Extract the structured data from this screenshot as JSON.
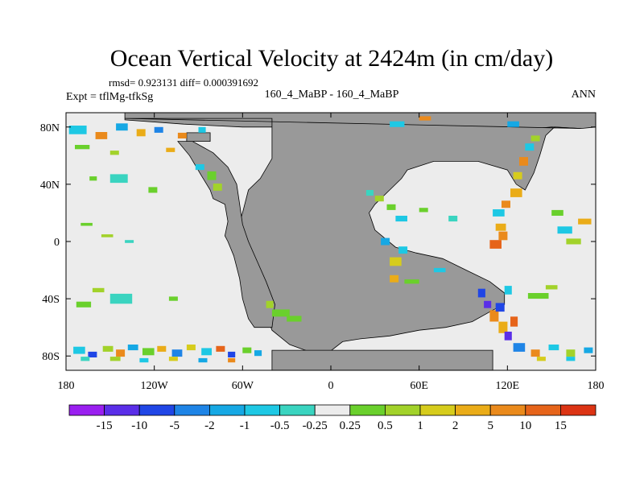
{
  "chart_data": {
    "type": "heatmap",
    "title": "Ocean Vertical Velocity at 2424m (in cm/day)",
    "stats_line": "rmsd= 0.923131 diff= 0.000391692",
    "expt_line": "Expt = tflMg-tfkSg",
    "center_label": "160_4_MaBP - 160_4_MaBP",
    "season": "ANN",
    "x_ticks": [
      "180",
      "120W",
      "60W",
      "0",
      "60E",
      "120E",
      "180"
    ],
    "x_tick_values": [
      -180,
      -120,
      -60,
      0,
      60,
      120,
      180
    ],
    "y_ticks": [
      "80N",
      "40N",
      "0",
      "40S",
      "80S"
    ],
    "y_tick_values": [
      80,
      40,
      0,
      -40,
      -80
    ],
    "xlim": [
      -180,
      180
    ],
    "ylim": [
      -90,
      90
    ],
    "colorbar_labels": [
      "-15",
      "-10",
      "-5",
      "-2",
      "-1",
      "-0.5",
      "-0.25",
      "0.25",
      "0.5",
      "1",
      "2",
      "5",
      "10",
      "15"
    ],
    "colorbar_colors": [
      "#9a1ff0",
      "#5a2ee8",
      "#2046e6",
      "#1e84e6",
      "#16a8e4",
      "#1ec8e4",
      "#3ad4c0",
      "#ececec",
      "#6ad02c",
      "#a2d22a",
      "#d6cc1c",
      "#eaac18",
      "#ea8a1c",
      "#e6641a",
      "#dc3414"
    ],
    "colors": {
      "land": "#999999",
      "near_zero": "#ececec",
      "coast_line": "#000000"
    }
  }
}
